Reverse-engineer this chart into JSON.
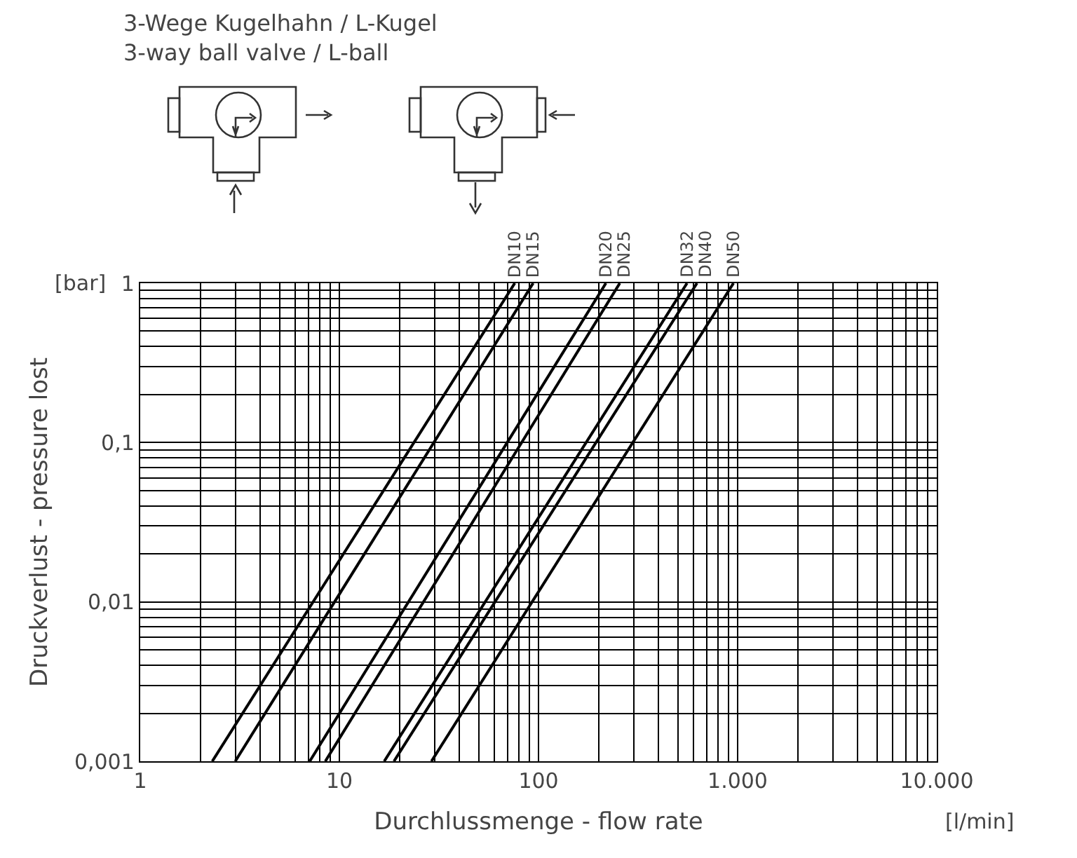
{
  "chart_data": {
    "type": "line",
    "title": "3-Wege Kugelhahn / L-Kugel",
    "subtitle": "3-way ball valve / L-ball",
    "xlabel": "Durchlussmenge - flow rate",
    "ylabel": "Druckverlust - pressure lost",
    "annotations": [
      "[bar]",
      "[l/min]"
    ],
    "log": "xy",
    "grid": true,
    "legend": false,
    "marker": "none",
    "line_style": "solid",
    "xlim": [
      1,
      10000
    ],
    "ylim": [
      0.001,
      1
    ],
    "xticks": [
      1,
      10,
      100,
      {
        "value": 1000,
        "label": "1.000"
      },
      {
        "value": 10000,
        "label": "10.000"
      }
    ],
    "yticks": [
      {
        "value": 0.001,
        "label": "0,001"
      },
      {
        "value": 0.01,
        "label": "0,01"
      },
      {
        "value": 0.1,
        "label": "0,1"
      },
      1
    ],
    "series": [
      {
        "name": "DN10",
        "color": "#000000",
        "x": [
          2.3,
          76
        ],
        "values": [
          0.001,
          1
        ]
      },
      {
        "name": "DN15",
        "color": "#000000",
        "x": [
          3,
          94
        ],
        "values": [
          0.001,
          1
        ]
      },
      {
        "name": "DN20",
        "color": "#000000",
        "x": [
          7.1,
          218
        ],
        "values": [
          0.001,
          1
        ]
      },
      {
        "name": "DN25",
        "color": "#000000",
        "x": [
          8.5,
          256
        ],
        "values": [
          0.001,
          1
        ]
      },
      {
        "name": "DN32",
        "color": "#000000",
        "x": [
          16.8,
          557
        ],
        "values": [
          0.001,
          1
        ]
      },
      {
        "name": "DN40",
        "color": "#000000",
        "x": [
          18.8,
          625
        ],
        "values": [
          0.001,
          1
        ]
      },
      {
        "name": "DN50",
        "color": "#000000",
        "x": [
          29,
          953
        ],
        "values": [
          0.001,
          1
        ]
      }
    ]
  }
}
